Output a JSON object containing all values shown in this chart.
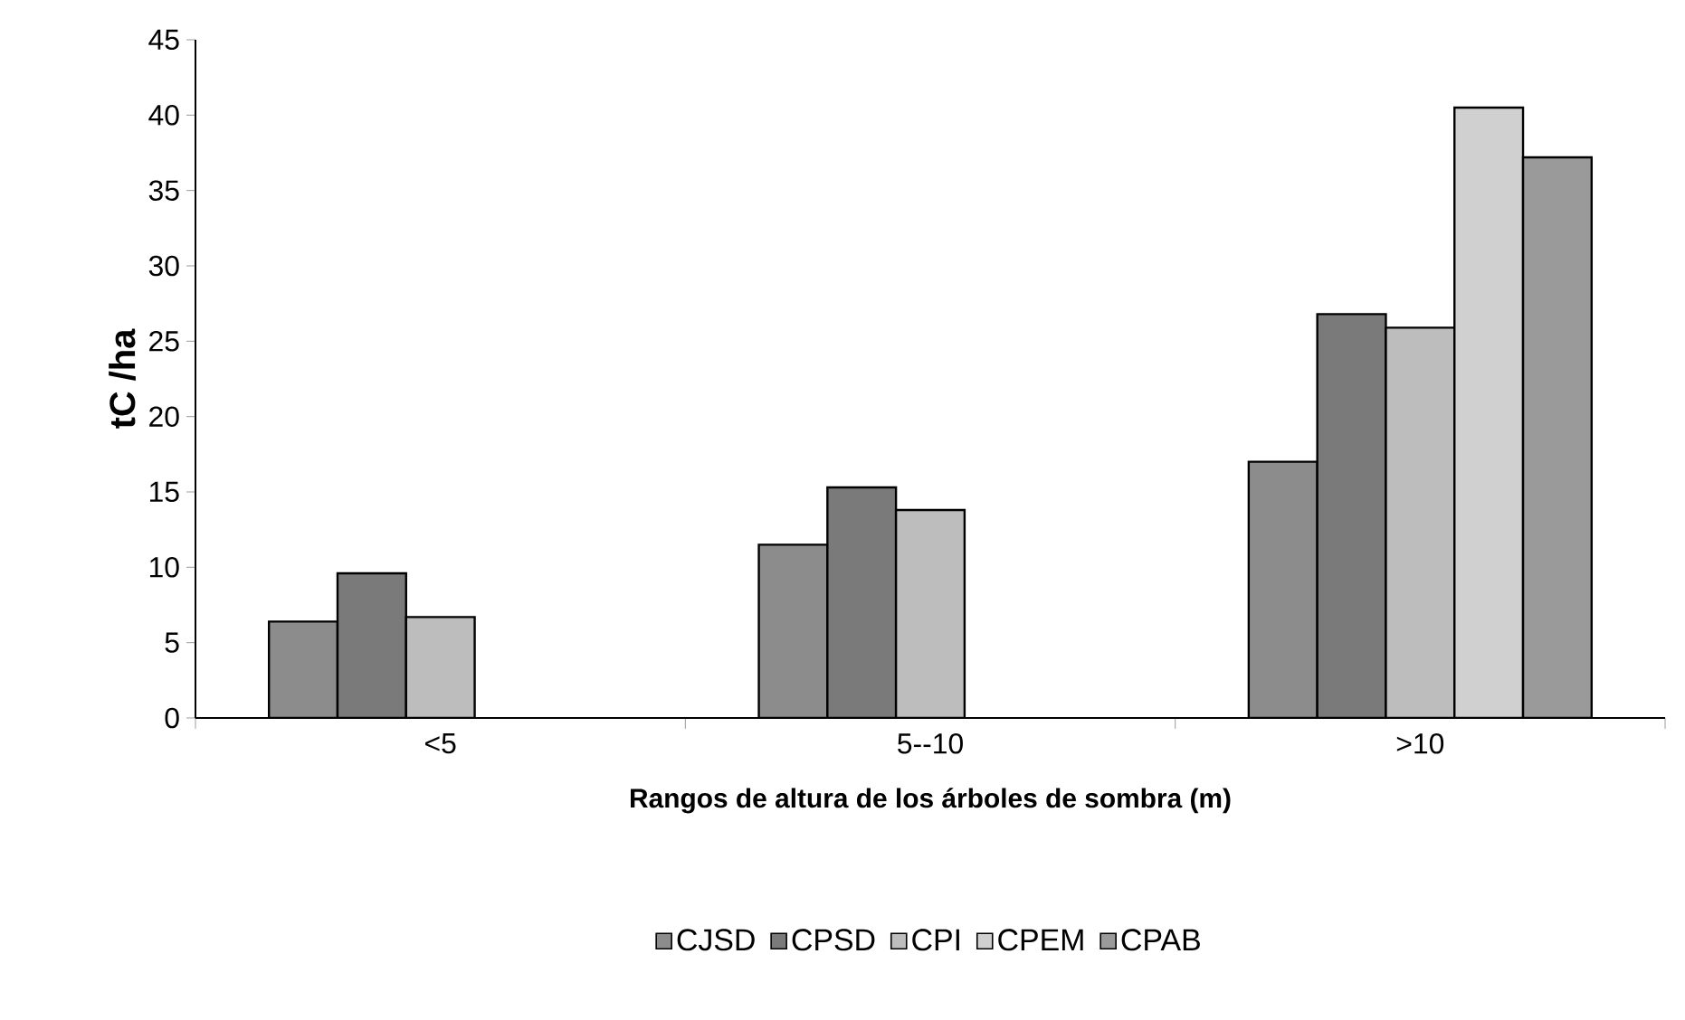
{
  "chart_data": {
    "type": "bar",
    "xlabel": "Rangos de altura de los árboles de sombra (m)",
    "ylabel": "tC /ha",
    "categories": [
      "<5",
      "5--10",
      ">10"
    ],
    "series": [
      {
        "name": "CJSD",
        "color": "#8c8c8c",
        "values": [
          6.4,
          11.5,
          17
        ]
      },
      {
        "name": "CPSD",
        "color": "#7a7a7a",
        "values": [
          9.6,
          15.3,
          26.8
        ]
      },
      {
        "name": "CPI",
        "color": "#bdbdbd",
        "values": [
          6.7,
          13.8,
          25.9
        ]
      },
      {
        "name": "CPEM",
        "color": "#d0d0d0",
        "values": [
          null,
          null,
          40.5
        ]
      },
      {
        "name": "CPAB",
        "color": "#9a9a9a",
        "values": [
          null,
          null,
          37.2
        ]
      }
    ],
    "ylim": [
      0,
      45
    ],
    "yticks": [
      0,
      5,
      10,
      15,
      20,
      25,
      30,
      35,
      40,
      45
    ],
    "grid": false,
    "legend": "bottom"
  }
}
